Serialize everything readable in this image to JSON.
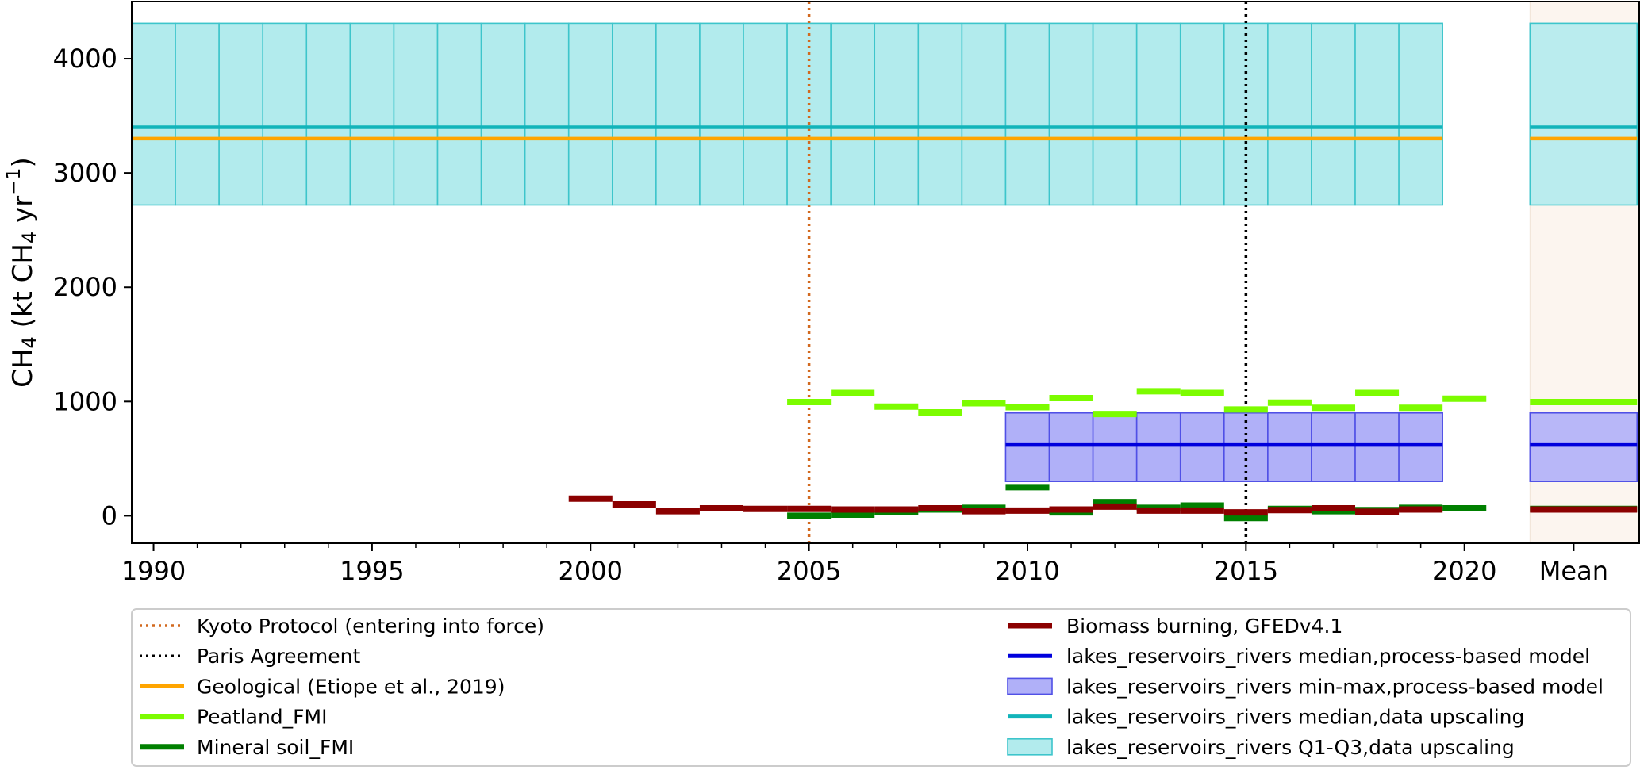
{
  "chart_data": {
    "type": "line",
    "title": "",
    "xlabel": "",
    "ylabel": {
      "prefix": "CH",
      "sub1": "4",
      "mid": " (kt CH",
      "sub2": "4",
      "unit": " yr",
      "sup": "−1",
      "suffix": ")"
    },
    "xlim": [
      1989.5,
      2024.0
    ],
    "ylim": [
      -240,
      4500
    ],
    "x_ticks": [
      1990,
      1995,
      2000,
      2005,
      2010,
      2015,
      2020
    ],
    "x_ticks_minor": [
      1991,
      1992,
      1993,
      1994,
      1996,
      1997,
      1998,
      1999,
      2001,
      2002,
      2003,
      2004,
      2006,
      2007,
      2008,
      2009,
      2011,
      2012,
      2013,
      2014,
      2016,
      2017,
      2018,
      2019
    ],
    "y_ticks": [
      0,
      1000,
      2000,
      3000,
      4000
    ],
    "mean_label": "Mean",
    "mean_x": 2022.5,
    "mean_panel": [
      2021.5,
      2024.0
    ],
    "vertical_lines": [
      {
        "name": "Kyoto Protocol (entering into force)",
        "x": 2005,
        "color": "#d2691e",
        "style": "dotted"
      },
      {
        "name": "Paris Agreement",
        "x": 2015,
        "color": "#000000",
        "style": "dotted"
      }
    ],
    "bands": [
      {
        "name": "lakes_reservoirs_rivers Q1-Q3,data upscaling",
        "x_start": 1990,
        "x_end": 2019,
        "low": 2720,
        "high": 4310,
        "mean_low": 2720,
        "mean_high": 4310,
        "color": "#b2ebed",
        "edge": "#3dc5cb"
      },
      {
        "name": "lakes_reservoirs_rivers min-max,process-based model",
        "x_start": 2010,
        "x_end": 2019,
        "low": 300,
        "high": 900,
        "mean_low": 300,
        "mean_high": 900,
        "color": "#b0b0f8",
        "edge": "#5050e6"
      }
    ],
    "series": [
      {
        "name": "Geological (Etiope et al., 2019)",
        "color": "#ffa500",
        "x_start": 1990,
        "x_end": 2019,
        "value": 3300,
        "mean": 3300
      },
      {
        "name": "lakes_reservoirs_rivers median,data upscaling",
        "color": "#12b4ba",
        "x_start": 1990,
        "x_end": 2019,
        "value": 3400,
        "mean": 3400
      },
      {
        "name": "lakes_reservoirs_rivers median,process-based model",
        "color": "#0000dd",
        "x_start": 2010,
        "x_end": 2019,
        "value": 620,
        "mean": 620
      },
      {
        "name": "Peatland_FMI",
        "color": "#7cfc00",
        "x": [
          2005,
          2006,
          2007,
          2008,
          2009,
          2010,
          2011,
          2012,
          2013,
          2014,
          2015,
          2016,
          2017,
          2018,
          2019,
          2020
        ],
        "values": [
          995,
          1075,
          955,
          905,
          985,
          950,
          1030,
          890,
          1090,
          1075,
          930,
          990,
          945,
          1075,
          945,
          1025
        ],
        "mean": 995
      },
      {
        "name": "Mineral soil_FMI",
        "color": "#008000",
        "x": [
          2005,
          2006,
          2007,
          2008,
          2009,
          2010,
          2011,
          2012,
          2013,
          2014,
          2015,
          2016,
          2017,
          2018,
          2019,
          2020
        ],
        "values": [
          0,
          10,
          35,
          55,
          70,
          250,
          30,
          120,
          70,
          90,
          -20,
          60,
          40,
          50,
          70,
          65
        ],
        "mean": 60
      },
      {
        "name": "Biomass burning, GFEDv4.1",
        "color": "#8b0000",
        "x": [
          2000,
          2001,
          2002,
          2003,
          2004,
          2005,
          2006,
          2007,
          2008,
          2009,
          2010,
          2011,
          2012,
          2013,
          2014,
          2015,
          2016,
          2017,
          2018,
          2019
        ],
        "values": [
          150,
          100,
          40,
          65,
          60,
          60,
          55,
          55,
          65,
          40,
          45,
          55,
          80,
          45,
          45,
          30,
          50,
          65,
          35,
          55
        ],
        "mean": 55
      }
    ],
    "legend": {
      "placement": "below",
      "left": [
        "Kyoto Protocol (entering into force)",
        "Paris Agreement",
        "Geological (Etiope et al., 2019)",
        "Peatland_FMI",
        "Mineral soil_FMI"
      ],
      "right": [
        "Biomass burning, GFEDv4.1",
        "lakes_reservoirs_rivers median,process-based model",
        "lakes_reservoirs_rivers min-max,process-based model",
        "lakes_reservoirs_rivers median,data upscaling",
        "lakes_reservoirs_rivers Q1-Q3,data upscaling"
      ]
    }
  }
}
